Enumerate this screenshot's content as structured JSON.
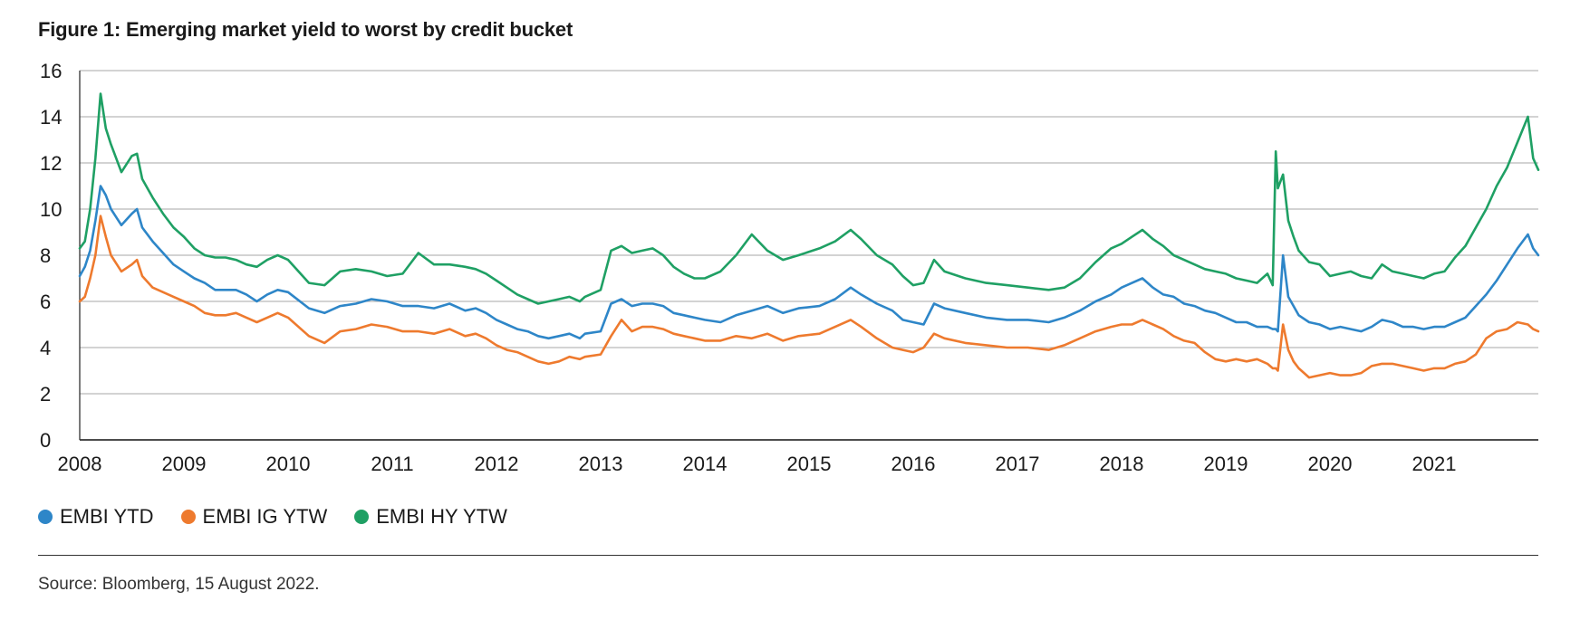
{
  "figure": {
    "title": "Figure 1: Emerging market yield to worst by credit bucket",
    "source": "Source: Bloomberg, 15 August 2022."
  },
  "chart_data": {
    "type": "line",
    "title": "Figure 1: Emerging market yield to worst by credit bucket",
    "xlabel": "",
    "ylabel": "",
    "xlim": [
      2008,
      2022
    ],
    "ylim": [
      0,
      16
    ],
    "yticks": [
      0,
      2,
      4,
      6,
      8,
      10,
      12,
      14,
      16
    ],
    "xticks": [
      2008,
      2009,
      2010,
      2011,
      2012,
      2013,
      2014,
      2015,
      2016,
      2017,
      2018,
      2019,
      2020,
      2021
    ],
    "grid": "horizontal",
    "legend_position": "bottom-left",
    "series": [
      {
        "name": "EMBI YTD",
        "color": "#2e86c8",
        "x": [
          2008.0,
          2008.05,
          2008.1,
          2008.15,
          2008.2,
          2008.25,
          2008.3,
          2008.4,
          2008.5,
          2008.55,
          2008.6,
          2008.7,
          2008.8,
          2008.9,
          2009.0,
          2009.1,
          2009.2,
          2009.3,
          2009.4,
          2009.5,
          2009.6,
          2009.7,
          2009.8,
          2009.9,
          2010.0,
          2010.2,
          2010.35,
          2010.5,
          2010.65,
          2010.8,
          2010.95,
          2011.1,
          2011.25,
          2011.4,
          2011.55,
          2011.7,
          2011.8,
          2011.9,
          2012.0,
          2012.1,
          2012.2,
          2012.3,
          2012.4,
          2012.5,
          2012.6,
          2012.7,
          2012.8,
          2012.85,
          2013.0,
          2013.1,
          2013.2,
          2013.3,
          2013.4,
          2013.5,
          2013.6,
          2013.7,
          2013.8,
          2013.9,
          2014.0,
          2014.15,
          2014.3,
          2014.45,
          2014.6,
          2014.75,
          2014.9,
          2015.1,
          2015.25,
          2015.4,
          2015.5,
          2015.65,
          2015.8,
          2015.9,
          2016.0,
          2016.1,
          2016.2,
          2016.3,
          2016.5,
          2016.7,
          2016.9,
          2017.1,
          2017.3,
          2017.45,
          2017.6,
          2017.75,
          2017.9,
          2018.0,
          2018.1,
          2018.2,
          2018.3,
          2018.4,
          2018.5,
          2018.6,
          2018.7,
          2018.8,
          2018.9,
          2019.0,
          2019.1,
          2019.2,
          2019.3,
          2019.4,
          2019.45,
          2019.48,
          2019.5,
          2019.55,
          2019.6,
          2019.65,
          2019.7,
          2019.8,
          2019.9,
          2020.0,
          2020.1,
          2020.2,
          2020.3,
          2020.4,
          2020.5,
          2020.6,
          2020.7,
          2020.8,
          2020.9,
          2021.0,
          2021.1,
          2021.2,
          2021.3,
          2021.4,
          2021.5,
          2021.6,
          2021.7,
          2021.8,
          2021.9,
          2021.95,
          2022.0
        ],
        "values": [
          7.1,
          7.5,
          8.2,
          9.5,
          11.0,
          10.6,
          10.0,
          9.3,
          9.8,
          10.0,
          9.2,
          8.6,
          8.1,
          7.6,
          7.3,
          7.0,
          6.8,
          6.5,
          6.5,
          6.5,
          6.3,
          6.0,
          6.3,
          6.5,
          6.4,
          5.7,
          5.5,
          5.8,
          5.9,
          6.1,
          6.0,
          5.8,
          5.8,
          5.7,
          5.9,
          5.6,
          5.7,
          5.5,
          5.2,
          5.0,
          4.8,
          4.7,
          4.5,
          4.4,
          4.5,
          4.6,
          4.4,
          4.6,
          4.7,
          5.9,
          6.1,
          5.8,
          5.9,
          5.9,
          5.8,
          5.5,
          5.4,
          5.3,
          5.2,
          5.1,
          5.4,
          5.6,
          5.8,
          5.5,
          5.7,
          5.8,
          6.1,
          6.6,
          6.3,
          5.9,
          5.6,
          5.2,
          5.1,
          5.0,
          5.9,
          5.7,
          5.5,
          5.3,
          5.2,
          5.2,
          5.1,
          5.3,
          5.6,
          6.0,
          6.3,
          6.6,
          6.8,
          7.0,
          6.6,
          6.3,
          6.2,
          5.9,
          5.8,
          5.6,
          5.5,
          5.3,
          5.1,
          5.1,
          4.9,
          4.9,
          4.8,
          4.8,
          4.7,
          8.0,
          6.2,
          5.8,
          5.4,
          5.1,
          5.0,
          4.8,
          4.9,
          4.8,
          4.7,
          4.9,
          5.2,
          5.1,
          4.9,
          4.9,
          4.8,
          4.9,
          4.9,
          5.1,
          5.3,
          5.8,
          6.3,
          6.9,
          7.6,
          8.3,
          8.9,
          8.3,
          8.0
        ]
      },
      {
        "name": "EMBI IG YTW",
        "color": "#ee7a2e",
        "x": [
          2008.0,
          2008.05,
          2008.1,
          2008.15,
          2008.2,
          2008.25,
          2008.3,
          2008.4,
          2008.5,
          2008.55,
          2008.6,
          2008.7,
          2008.8,
          2008.9,
          2009.0,
          2009.1,
          2009.2,
          2009.3,
          2009.4,
          2009.5,
          2009.6,
          2009.7,
          2009.8,
          2009.9,
          2010.0,
          2010.2,
          2010.35,
          2010.5,
          2010.65,
          2010.8,
          2010.95,
          2011.1,
          2011.25,
          2011.4,
          2011.55,
          2011.7,
          2011.8,
          2011.9,
          2012.0,
          2012.1,
          2012.2,
          2012.3,
          2012.4,
          2012.5,
          2012.6,
          2012.7,
          2012.8,
          2012.85,
          2013.0,
          2013.1,
          2013.2,
          2013.3,
          2013.4,
          2013.5,
          2013.6,
          2013.7,
          2013.8,
          2013.9,
          2014.0,
          2014.15,
          2014.3,
          2014.45,
          2014.6,
          2014.75,
          2014.9,
          2015.1,
          2015.25,
          2015.4,
          2015.5,
          2015.65,
          2015.8,
          2015.9,
          2016.0,
          2016.1,
          2016.2,
          2016.3,
          2016.5,
          2016.7,
          2016.9,
          2017.1,
          2017.3,
          2017.45,
          2017.6,
          2017.75,
          2017.9,
          2018.0,
          2018.1,
          2018.2,
          2018.3,
          2018.4,
          2018.5,
          2018.6,
          2018.7,
          2018.8,
          2018.9,
          2019.0,
          2019.1,
          2019.2,
          2019.3,
          2019.4,
          2019.45,
          2019.48,
          2019.5,
          2019.55,
          2019.6,
          2019.65,
          2019.7,
          2019.8,
          2019.9,
          2020.0,
          2020.1,
          2020.2,
          2020.3,
          2020.4,
          2020.5,
          2020.6,
          2020.7,
          2020.8,
          2020.9,
          2021.0,
          2021.1,
          2021.2,
          2021.3,
          2021.4,
          2021.5,
          2021.6,
          2021.7,
          2021.8,
          2021.9,
          2021.95,
          2022.0
        ],
        "values": [
          6.0,
          6.2,
          7.0,
          8.0,
          9.7,
          8.8,
          8.0,
          7.3,
          7.6,
          7.8,
          7.1,
          6.6,
          6.4,
          6.2,
          6.0,
          5.8,
          5.5,
          5.4,
          5.4,
          5.5,
          5.3,
          5.1,
          5.3,
          5.5,
          5.3,
          4.5,
          4.2,
          4.7,
          4.8,
          5.0,
          4.9,
          4.7,
          4.7,
          4.6,
          4.8,
          4.5,
          4.6,
          4.4,
          4.1,
          3.9,
          3.8,
          3.6,
          3.4,
          3.3,
          3.4,
          3.6,
          3.5,
          3.6,
          3.7,
          4.5,
          5.2,
          4.7,
          4.9,
          4.9,
          4.8,
          4.6,
          4.5,
          4.4,
          4.3,
          4.3,
          4.5,
          4.4,
          4.6,
          4.3,
          4.5,
          4.6,
          4.9,
          5.2,
          4.9,
          4.4,
          4.0,
          3.9,
          3.8,
          4.0,
          4.6,
          4.4,
          4.2,
          4.1,
          4.0,
          4.0,
          3.9,
          4.1,
          4.4,
          4.7,
          4.9,
          5.0,
          5.0,
          5.2,
          5.0,
          4.8,
          4.5,
          4.3,
          4.2,
          3.8,
          3.5,
          3.4,
          3.5,
          3.4,
          3.5,
          3.3,
          3.1,
          3.1,
          3.0,
          5.0,
          3.9,
          3.4,
          3.1,
          2.7,
          2.8,
          2.9,
          2.8,
          2.8,
          2.9,
          3.2,
          3.3,
          3.3,
          3.2,
          3.1,
          3.0,
          3.1,
          3.1,
          3.3,
          3.4,
          3.7,
          4.4,
          4.7,
          4.8,
          5.1,
          5.0,
          4.8,
          4.7
        ]
      },
      {
        "name": "EMBI HY YTW",
        "color": "#1fa064",
        "x": [
          2008.0,
          2008.05,
          2008.1,
          2008.15,
          2008.2,
          2008.25,
          2008.3,
          2008.4,
          2008.5,
          2008.55,
          2008.6,
          2008.7,
          2008.8,
          2008.9,
          2009.0,
          2009.1,
          2009.2,
          2009.3,
          2009.4,
          2009.5,
          2009.6,
          2009.7,
          2009.8,
          2009.9,
          2010.0,
          2010.2,
          2010.35,
          2010.5,
          2010.65,
          2010.8,
          2010.95,
          2011.1,
          2011.25,
          2011.4,
          2011.55,
          2011.7,
          2011.8,
          2011.9,
          2012.0,
          2012.1,
          2012.2,
          2012.3,
          2012.4,
          2012.5,
          2012.6,
          2012.7,
          2012.8,
          2012.85,
          2013.0,
          2013.1,
          2013.2,
          2013.3,
          2013.4,
          2013.5,
          2013.6,
          2013.7,
          2013.8,
          2013.9,
          2014.0,
          2014.15,
          2014.3,
          2014.45,
          2014.6,
          2014.75,
          2014.9,
          2015.1,
          2015.25,
          2015.4,
          2015.5,
          2015.65,
          2015.8,
          2015.9,
          2016.0,
          2016.1,
          2016.2,
          2016.3,
          2016.5,
          2016.7,
          2016.9,
          2017.1,
          2017.3,
          2017.45,
          2017.6,
          2017.75,
          2017.9,
          2018.0,
          2018.1,
          2018.2,
          2018.3,
          2018.4,
          2018.5,
          2018.6,
          2018.7,
          2018.8,
          2018.9,
          2019.0,
          2019.1,
          2019.2,
          2019.3,
          2019.4,
          2019.45,
          2019.48,
          2019.5,
          2019.55,
          2019.6,
          2019.65,
          2019.7,
          2019.8,
          2019.9,
          2020.0,
          2020.1,
          2020.2,
          2020.3,
          2020.4,
          2020.5,
          2020.6,
          2020.7,
          2020.8,
          2020.9,
          2021.0,
          2021.1,
          2021.2,
          2021.3,
          2021.4,
          2021.5,
          2021.6,
          2021.7,
          2021.8,
          2021.9,
          2021.95,
          2022.0
        ],
        "values": [
          8.3,
          8.6,
          10.0,
          12.2,
          15.0,
          13.5,
          12.8,
          11.6,
          12.3,
          12.4,
          11.3,
          10.5,
          9.8,
          9.2,
          8.8,
          8.3,
          8.0,
          7.9,
          7.9,
          7.8,
          7.6,
          7.5,
          7.8,
          8.0,
          7.8,
          6.8,
          6.7,
          7.3,
          7.4,
          7.3,
          7.1,
          7.2,
          8.1,
          7.6,
          7.6,
          7.5,
          7.4,
          7.2,
          6.9,
          6.6,
          6.3,
          6.1,
          5.9,
          6.0,
          6.1,
          6.2,
          6.0,
          6.2,
          6.5,
          8.2,
          8.4,
          8.1,
          8.2,
          8.3,
          8.0,
          7.5,
          7.2,
          7.0,
          7.0,
          7.3,
          8.0,
          8.9,
          8.2,
          7.8,
          8.0,
          8.3,
          8.6,
          9.1,
          8.7,
          8.0,
          7.6,
          7.1,
          6.7,
          6.8,
          7.8,
          7.3,
          7.0,
          6.8,
          6.7,
          6.6,
          6.5,
          6.6,
          7.0,
          7.7,
          8.3,
          8.5,
          8.8,
          9.1,
          8.7,
          8.4,
          8.0,
          7.8,
          7.6,
          7.4,
          7.3,
          7.2,
          7.0,
          6.9,
          6.8,
          7.2,
          6.7,
          12.5,
          10.9,
          11.5,
          9.5,
          8.8,
          8.2,
          7.7,
          7.6,
          7.1,
          7.2,
          7.3,
          7.1,
          7.0,
          7.6,
          7.3,
          7.2,
          7.1,
          7.0,
          7.2,
          7.3,
          7.9,
          8.4,
          9.2,
          10.0,
          11.0,
          11.8,
          12.9,
          14.0,
          12.2,
          11.7
        ]
      }
    ]
  },
  "legend": {
    "items": [
      {
        "label": "EMBI YTD",
        "color": "#2e86c8"
      },
      {
        "label": "EMBI IG YTW",
        "color": "#ee7a2e"
      },
      {
        "label": "EMBI HY YTW",
        "color": "#1fa064"
      }
    ]
  }
}
